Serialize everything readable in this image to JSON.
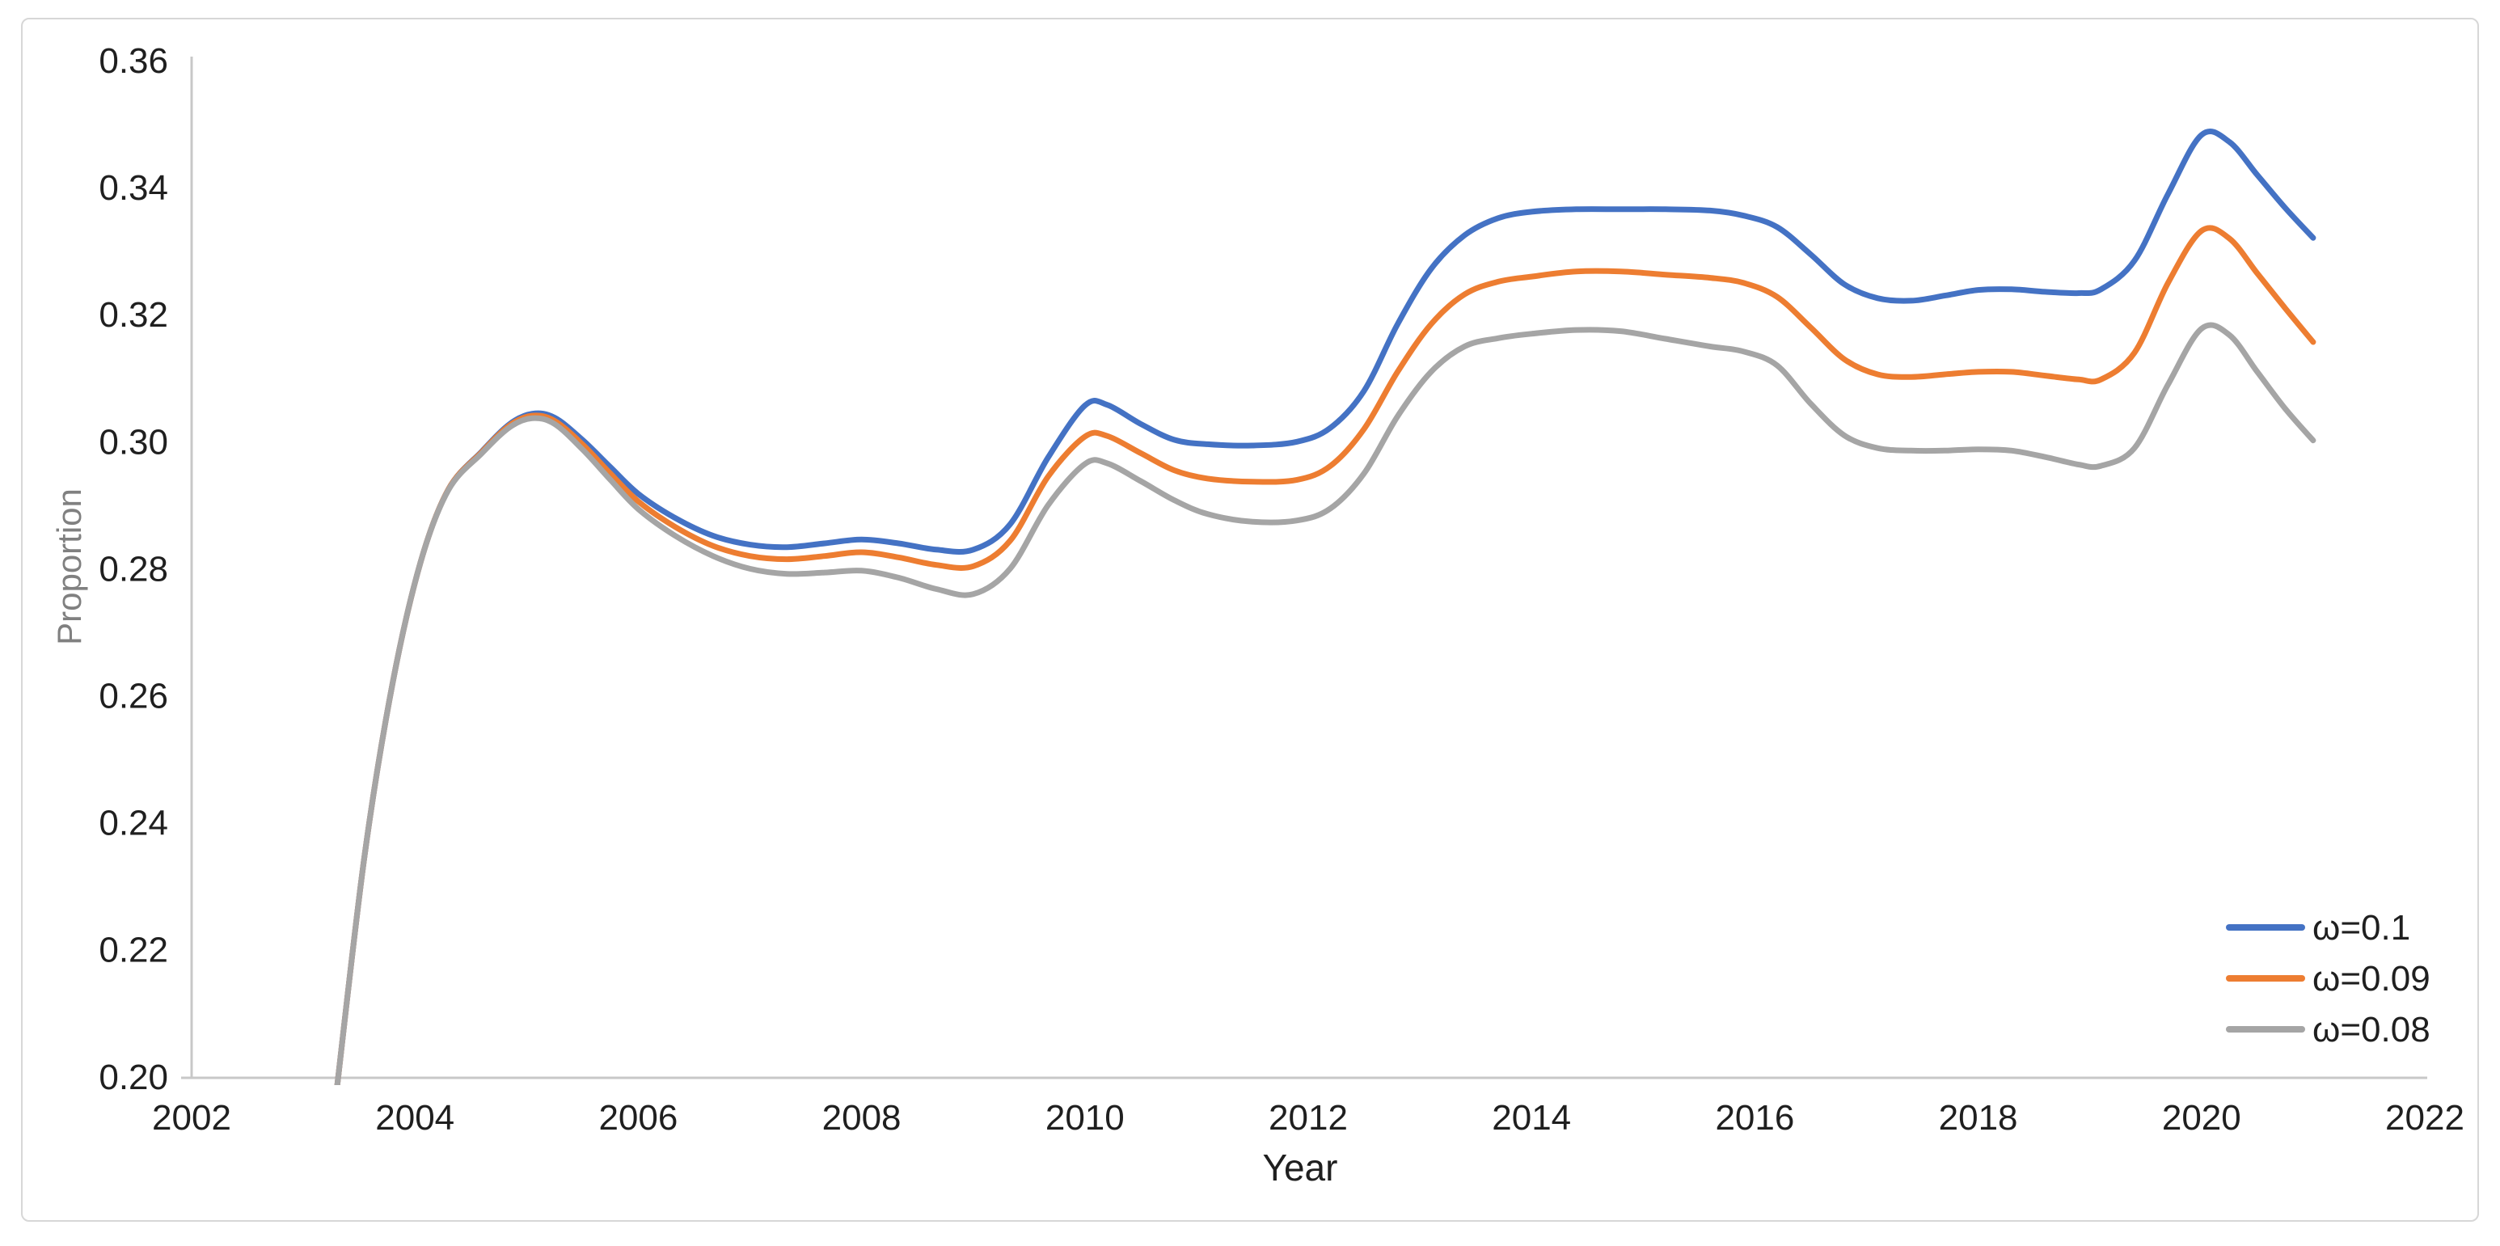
{
  "chart_data": {
    "type": "line",
    "title": "",
    "xlabel": "Year",
    "ylabel": "Proportion",
    "xlim": [
      2002,
      2022
    ],
    "ylim": [
      0.2,
      0.36
    ],
    "x_ticks": [
      "2002",
      "2004",
      "2006",
      "2008",
      "2010",
      "2012",
      "2014",
      "2016",
      "2018",
      "2020",
      "2022"
    ],
    "y_ticks": [
      "0.36",
      "0.34",
      "0.32",
      "0.30",
      "0.28",
      "0.26",
      "0.24",
      "0.22",
      "0.20"
    ],
    "grid": false,
    "legend_position": "lower right",
    "colors": {
      "axis_line": "#c8c8c8",
      "tick_label": "#1f1f1f",
      "x_title": "#1f1f1f",
      "y_title": "#808080",
      "card_border": "#d7d7d7",
      "background": "#ffffff"
    },
    "series": [
      {
        "name": "ω=0.1",
        "color": "#4472C4",
        "points": [
          [
            2003.3,
            0.198
          ],
          [
            2003.55,
            0.235
          ],
          [
            2003.8,
            0.262
          ],
          [
            2004.05,
            0.281
          ],
          [
            2004.3,
            0.2925
          ],
          [
            2004.6,
            0.2985
          ],
          [
            2004.85,
            0.3028
          ],
          [
            2005.05,
            0.3044
          ],
          [
            2005.25,
            0.3038
          ],
          [
            2005.5,
            0.3003
          ],
          [
            2005.75,
            0.296
          ],
          [
            2006.0,
            0.2918
          ],
          [
            2006.33,
            0.288
          ],
          [
            2006.67,
            0.2852
          ],
          [
            2007.0,
            0.2838
          ],
          [
            2007.33,
            0.2834
          ],
          [
            2007.67,
            0.284
          ],
          [
            2008.0,
            0.2846
          ],
          [
            2008.33,
            0.284
          ],
          [
            2008.67,
            0.283
          ],
          [
            2009.0,
            0.283
          ],
          [
            2009.33,
            0.287
          ],
          [
            2009.67,
            0.2975
          ],
          [
            2010.0,
            0.3057
          ],
          [
            2010.2,
            0.3058
          ],
          [
            2010.5,
            0.3028
          ],
          [
            2010.8,
            0.3003
          ],
          [
            2011.1,
            0.2996
          ],
          [
            2011.5,
            0.2994
          ],
          [
            2011.9,
            0.3
          ],
          [
            2012.2,
            0.3022
          ],
          [
            2012.5,
            0.308
          ],
          [
            2012.8,
            0.3185
          ],
          [
            2013.1,
            0.3272
          ],
          [
            2013.4,
            0.3325
          ],
          [
            2013.7,
            0.3352
          ],
          [
            2014.0,
            0.3362
          ],
          [
            2014.4,
            0.3366
          ],
          [
            2014.8,
            0.3366
          ],
          [
            2015.2,
            0.3366
          ],
          [
            2015.6,
            0.3364
          ],
          [
            2015.9,
            0.3356
          ],
          [
            2016.2,
            0.3338
          ],
          [
            2016.5,
            0.3295
          ],
          [
            2016.8,
            0.3248
          ],
          [
            2017.1,
            0.3226
          ],
          [
            2017.4,
            0.3222
          ],
          [
            2017.7,
            0.323
          ],
          [
            2018.0,
            0.3239
          ],
          [
            2018.3,
            0.324
          ],
          [
            2018.6,
            0.3236
          ],
          [
            2018.9,
            0.3234
          ],
          [
            2019.1,
            0.324
          ],
          [
            2019.4,
            0.3285
          ],
          [
            2019.7,
            0.339
          ],
          [
            2020.0,
            0.3483
          ],
          [
            2020.25,
            0.3472
          ],
          [
            2020.5,
            0.342
          ],
          [
            2020.75,
            0.3368
          ],
          [
            2021.0,
            0.3321
          ]
        ]
      },
      {
        "name": "ω=0.09",
        "color": "#ED7D31",
        "points": [
          [
            2003.3,
            0.198
          ],
          [
            2003.55,
            0.235
          ],
          [
            2003.8,
            0.262
          ],
          [
            2004.05,
            0.281
          ],
          [
            2004.3,
            0.2925
          ],
          [
            2004.6,
            0.2984
          ],
          [
            2004.85,
            0.3026
          ],
          [
            2005.05,
            0.3041
          ],
          [
            2005.25,
            0.3033
          ],
          [
            2005.5,
            0.2996
          ],
          [
            2005.75,
            0.295
          ],
          [
            2006.0,
            0.2906
          ],
          [
            2006.33,
            0.2866
          ],
          [
            2006.67,
            0.2836
          ],
          [
            2007.0,
            0.282
          ],
          [
            2007.33,
            0.2815
          ],
          [
            2007.67,
            0.282
          ],
          [
            2008.0,
            0.2826
          ],
          [
            2008.33,
            0.2818
          ],
          [
            2008.67,
            0.2806
          ],
          [
            2009.0,
            0.2804
          ],
          [
            2009.33,
            0.2844
          ],
          [
            2009.67,
            0.2945
          ],
          [
            2010.0,
            0.3008
          ],
          [
            2010.2,
            0.3009
          ],
          [
            2010.5,
            0.2982
          ],
          [
            2010.8,
            0.2955
          ],
          [
            2011.1,
            0.2942
          ],
          [
            2011.5,
            0.2937
          ],
          [
            2011.9,
            0.294
          ],
          [
            2012.2,
            0.2962
          ],
          [
            2012.5,
            0.302
          ],
          [
            2012.8,
            0.311
          ],
          [
            2013.1,
            0.3185
          ],
          [
            2013.4,
            0.3232
          ],
          [
            2013.7,
            0.3252
          ],
          [
            2014.0,
            0.326
          ],
          [
            2014.4,
            0.3268
          ],
          [
            2014.8,
            0.3268
          ],
          [
            2015.2,
            0.3263
          ],
          [
            2015.6,
            0.3258
          ],
          [
            2015.9,
            0.325
          ],
          [
            2016.2,
            0.3228
          ],
          [
            2016.5,
            0.318
          ],
          [
            2016.8,
            0.313
          ],
          [
            2017.1,
            0.3106
          ],
          [
            2017.4,
            0.3102
          ],
          [
            2017.7,
            0.3106
          ],
          [
            2018.0,
            0.311
          ],
          [
            2018.3,
            0.311
          ],
          [
            2018.6,
            0.3104
          ],
          [
            2018.9,
            0.3098
          ],
          [
            2019.1,
            0.3098
          ],
          [
            2019.4,
            0.314
          ],
          [
            2019.7,
            0.325
          ],
          [
            2020.0,
            0.3332
          ],
          [
            2020.25,
            0.332
          ],
          [
            2020.5,
            0.3265
          ],
          [
            2020.75,
            0.321
          ],
          [
            2021.0,
            0.3157
          ]
        ]
      },
      {
        "name": "ω=0.08",
        "color": "#A5A5A5",
        "points": [
          [
            2003.3,
            0.198
          ],
          [
            2003.55,
            0.235
          ],
          [
            2003.8,
            0.262
          ],
          [
            2004.05,
            0.281
          ],
          [
            2004.3,
            0.2924
          ],
          [
            2004.6,
            0.2982
          ],
          [
            2004.85,
            0.3023
          ],
          [
            2005.05,
            0.3037
          ],
          [
            2005.25,
            0.3028
          ],
          [
            2005.5,
            0.2988
          ],
          [
            2005.75,
            0.294
          ],
          [
            2006.0,
            0.2894
          ],
          [
            2006.33,
            0.2852
          ],
          [
            2006.67,
            0.282
          ],
          [
            2007.0,
            0.28
          ],
          [
            2007.33,
            0.2792
          ],
          [
            2007.67,
            0.2794
          ],
          [
            2008.0,
            0.2797
          ],
          [
            2008.33,
            0.2786
          ],
          [
            2008.67,
            0.2768
          ],
          [
            2009.0,
            0.276
          ],
          [
            2009.33,
            0.28
          ],
          [
            2009.67,
            0.29
          ],
          [
            2010.0,
            0.2965
          ],
          [
            2010.2,
            0.2966
          ],
          [
            2010.5,
            0.2938
          ],
          [
            2010.8,
            0.2908
          ],
          [
            2011.1,
            0.2886
          ],
          [
            2011.5,
            0.2874
          ],
          [
            2011.9,
            0.2876
          ],
          [
            2012.2,
            0.2895
          ],
          [
            2012.5,
            0.295
          ],
          [
            2012.8,
            0.304
          ],
          [
            2013.1,
            0.311
          ],
          [
            2013.4,
            0.315
          ],
          [
            2013.7,
            0.3163
          ],
          [
            2014.0,
            0.317
          ],
          [
            2014.4,
            0.3176
          ],
          [
            2014.8,
            0.3174
          ],
          [
            2015.2,
            0.3162
          ],
          [
            2015.6,
            0.315
          ],
          [
            2015.9,
            0.3142
          ],
          [
            2016.2,
            0.312
          ],
          [
            2016.5,
            0.306
          ],
          [
            2016.8,
            0.301
          ],
          [
            2017.1,
            0.299
          ],
          [
            2017.4,
            0.2986
          ],
          [
            2017.7,
            0.2986
          ],
          [
            2018.0,
            0.2988
          ],
          [
            2018.3,
            0.2986
          ],
          [
            2018.6,
            0.2976
          ],
          [
            2018.9,
            0.2964
          ],
          [
            2019.1,
            0.2962
          ],
          [
            2019.4,
            0.299
          ],
          [
            2019.7,
            0.309
          ],
          [
            2020.0,
            0.3178
          ],
          [
            2020.25,
            0.3168
          ],
          [
            2020.5,
            0.311
          ],
          [
            2020.75,
            0.3052
          ],
          [
            2021.0,
            0.3002
          ]
        ]
      }
    ],
    "legend": [
      {
        "label": "ω=0.1"
      },
      {
        "label": "ω=0.09"
      },
      {
        "label": "ω=0.08"
      }
    ]
  }
}
